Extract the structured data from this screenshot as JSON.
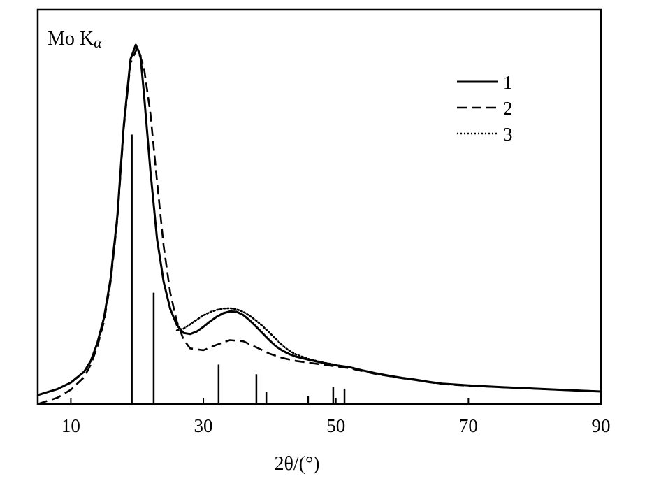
{
  "chart_data": {
    "type": "line",
    "title": "",
    "annotation": {
      "main": "Mo K",
      "sub": "α"
    },
    "xlabel": "2θ/(°)",
    "ylabel": "",
    "xlim": [
      5,
      90
    ],
    "ylim": [
      0,
      100
    ],
    "xticks": [
      10,
      30,
      50,
      70,
      90
    ],
    "grid": false,
    "legend_position": "top-right",
    "series": [
      {
        "name": "1",
        "style": "solid",
        "x": [
          5,
          8,
          10,
          12,
          13,
          14,
          15,
          16,
          17,
          18,
          19,
          19.8,
          20.5,
          21,
          22,
          23,
          24,
          25,
          26,
          27,
          28,
          29,
          30,
          31,
          32,
          33,
          34,
          35,
          36,
          37,
          38,
          39,
          40,
          41,
          42,
          43,
          44,
          46,
          48,
          50,
          52,
          54,
          56,
          58,
          60,
          62,
          64,
          66,
          70,
          75,
          80,
          85,
          90
        ],
        "y": [
          2.5,
          4.2,
          6.0,
          9.0,
          12.0,
          17.0,
          24.0,
          35.0,
          52.0,
          78.0,
          96.0,
          100.0,
          97.0,
          87.0,
          65.0,
          46.0,
          34.0,
          26.5,
          22.0,
          19.8,
          19.5,
          20.2,
          21.5,
          23.0,
          24.3,
          25.3,
          25.8,
          25.7,
          24.8,
          23.3,
          21.5,
          19.6,
          17.7,
          16.0,
          14.8,
          13.9,
          13.2,
          12.3,
          11.5,
          10.8,
          10.3,
          9.4,
          8.6,
          7.9,
          7.3,
          6.8,
          6.2,
          5.7,
          5.2,
          4.7,
          4.3,
          3.9,
          3.5
        ]
      },
      {
        "name": "2",
        "style": "dashed",
        "x": [
          5,
          8,
          10,
          12,
          13,
          14,
          15,
          16,
          17,
          18,
          19,
          20,
          21,
          22,
          23,
          24,
          25,
          26,
          27,
          28,
          30,
          32,
          34,
          36,
          38,
          40,
          42,
          44,
          46,
          48,
          50,
          52,
          54,
          56,
          58,
          60,
          62,
          64,
          66,
          70,
          75,
          80,
          85,
          90
        ],
        "y": [
          0,
          1.8,
          4.0,
          7.5,
          11.0,
          16.0,
          23.0,
          34.0,
          51.0,
          77.0,
          95.0,
          99.0,
          94.0,
          81.0,
          62.0,
          44.0,
          31.0,
          23.0,
          18.0,
          15.5,
          15.0,
          16.5,
          17.8,
          17.5,
          15.8,
          14.0,
          12.8,
          12.0,
          11.5,
          11.0,
          10.5,
          10.0,
          9.2,
          8.4,
          7.8,
          7.2,
          6.7,
          6.1,
          5.6,
          5.1,
          4.7,
          4.3,
          3.9,
          3.5
        ]
      },
      {
        "name": "3",
        "style": "dotted",
        "x": [
          26,
          27,
          28,
          29,
          30,
          31,
          32,
          33,
          34,
          35,
          36,
          37,
          38,
          39,
          40,
          41,
          42,
          43,
          44,
          46,
          48,
          50
        ],
        "y": [
          20.5,
          21.0,
          22.2,
          23.5,
          24.7,
          25.6,
          26.2,
          26.6,
          26.7,
          26.4,
          25.7,
          24.6,
          23.2,
          21.6,
          19.8,
          18.0,
          16.2,
          14.8,
          13.8,
          12.5,
          11.6,
          10.9
        ]
      }
    ],
    "reference_lines": {
      "x": [
        19.2,
        22.5,
        32.3,
        38.0,
        39.5,
        45.8,
        49.6,
        51.3
      ],
      "y": [
        75,
        31,
        11,
        8.3,
        3.5,
        2.3,
        4.7,
        4.3
      ]
    }
  }
}
